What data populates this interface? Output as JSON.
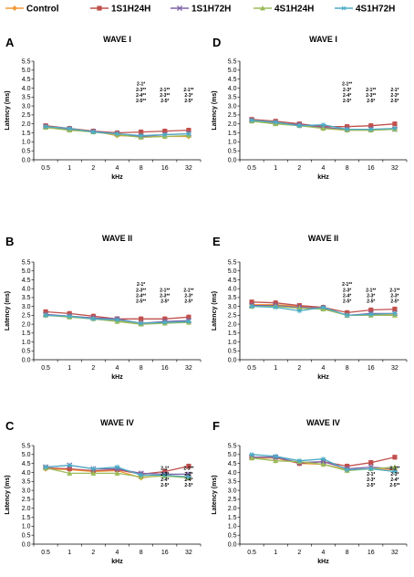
{
  "legend": [
    {
      "name": "Control",
      "color": "#f29b38",
      "marker": "diamond"
    },
    {
      "name": "1S1H24H",
      "color": "#c0504d",
      "marker": "square"
    },
    {
      "name": "1S1H72H",
      "color": "#7f63a8",
      "marker": "x"
    },
    {
      "name": "4S1H24H",
      "color": "#9bbb59",
      "marker": "triangle"
    },
    {
      "name": "4S1H72H",
      "color": "#4bacc6",
      "marker": "star"
    }
  ],
  "chart_data": [
    {
      "type": "line",
      "panel": "A",
      "title": "WAVE I",
      "xlabel": "kHz",
      "ylabel": "Latency (ms)",
      "categories": [
        "0.5",
        "1",
        "2",
        "4",
        "8",
        "16",
        "32"
      ],
      "ylim": [
        0,
        5.5
      ],
      "yticks": [
        "0.0",
        "0.5",
        "1.0",
        "1.5",
        "2.0",
        "2.5",
        "3.0",
        "3.5",
        "4.0",
        "4.5",
        "5.0",
        "5.5"
      ],
      "series": [
        {
          "name": "Control",
          "values": [
            1.85,
            1.75,
            1.6,
            1.35,
            1.3,
            1.3,
            1.3
          ]
        },
        {
          "name": "1S1H24H",
          "values": [
            1.9,
            1.75,
            1.6,
            1.5,
            1.55,
            1.6,
            1.65
          ]
        },
        {
          "name": "1S1H72H",
          "values": [
            1.85,
            1.7,
            1.58,
            1.45,
            1.3,
            1.4,
            1.45
          ]
        },
        {
          "name": "4S1H24H",
          "values": [
            1.8,
            1.65,
            1.55,
            1.4,
            1.25,
            1.3,
            1.35
          ]
        },
        {
          "name": "4S1H72H",
          "values": [
            1.85,
            1.75,
            1.55,
            1.45,
            1.35,
            1.4,
            1.45
          ]
        }
      ],
      "annotations": [
        {
          "category": "8",
          "lines": [
            "2-1*",
            "2-3**",
            "2-4**",
            "2-5**"
          ]
        },
        {
          "category": "16",
          "lines": [
            "2-1**",
            "2-3**",
            "2-5*"
          ]
        },
        {
          "category": "32",
          "lines": [
            "2-1**",
            "2-3*",
            "2-5*"
          ]
        }
      ]
    },
    {
      "type": "line",
      "panel": "D",
      "title": "WAVE I",
      "xlabel": "kHz",
      "ylabel": "Latency (ms)",
      "categories": [
        "0.5",
        "1",
        "2",
        "4",
        "8",
        "16",
        "32"
      ],
      "ylim": [
        0,
        5.5
      ],
      "yticks": [
        "0.0",
        "0.5",
        "1.0",
        "1.5",
        "2.0",
        "2.5",
        "3.0",
        "3.5",
        "4.0",
        "4.5",
        "5.0",
        "5.5"
      ],
      "series": [
        {
          "name": "Control",
          "values": [
            2.2,
            2.05,
            1.95,
            1.75,
            1.65,
            1.65,
            1.7
          ]
        },
        {
          "name": "1S1H24H",
          "values": [
            2.25,
            2.15,
            2.0,
            1.85,
            1.85,
            1.9,
            2.0
          ]
        },
        {
          "name": "1S1H72H",
          "values": [
            2.2,
            2.05,
            1.95,
            1.8,
            1.7,
            1.7,
            1.7
          ]
        },
        {
          "name": "4S1H24H",
          "values": [
            2.15,
            2.0,
            1.9,
            1.75,
            1.65,
            1.65,
            1.7
          ]
        },
        {
          "name": "4S1H72H",
          "values": [
            2.2,
            2.1,
            1.9,
            1.95,
            1.7,
            1.7,
            1.75
          ]
        }
      ],
      "annotations": [
        {
          "category": "8",
          "lines": [
            "2-1**",
            "2-3*",
            "2-4*",
            "2-5*"
          ]
        },
        {
          "category": "16",
          "lines": [
            "2-1**",
            "2-3**",
            "2-5*"
          ]
        },
        {
          "category": "32",
          "lines": [
            "2-1*",
            "2-3*",
            "2-5*"
          ]
        }
      ]
    },
    {
      "type": "line",
      "panel": "B",
      "title": "WAVE II",
      "xlabel": "kHz",
      "ylabel": "Latency (ms)",
      "categories": [
        "0.5",
        "1",
        "2",
        "4",
        "8",
        "16",
        "32"
      ],
      "ylim": [
        0,
        5.5
      ],
      "yticks": [
        "0.0",
        "0.5",
        "1.0",
        "1.5",
        "2.0",
        "2.5",
        "3.0",
        "3.5",
        "4.0",
        "4.5",
        "5.0",
        "5.5"
      ],
      "series": [
        {
          "name": "Control",
          "values": [
            2.5,
            2.45,
            2.35,
            2.2,
            2.05,
            2.1,
            2.1
          ]
        },
        {
          "name": "1S1H24H",
          "values": [
            2.7,
            2.6,
            2.45,
            2.3,
            2.3,
            2.3,
            2.4
          ]
        },
        {
          "name": "1S1H72H",
          "values": [
            2.55,
            2.45,
            2.35,
            2.3,
            2.05,
            2.15,
            2.2
          ]
        },
        {
          "name": "4S1H24H",
          "values": [
            2.5,
            2.4,
            2.3,
            2.15,
            2.0,
            2.05,
            2.1
          ]
        },
        {
          "name": "4S1H72H",
          "values": [
            2.5,
            2.45,
            2.3,
            2.25,
            2.05,
            2.1,
            2.15
          ]
        }
      ],
      "annotations": [
        {
          "category": "8",
          "lines": [
            "2-1*",
            "2-3**",
            "2-4**",
            "2-5**"
          ]
        },
        {
          "category": "16",
          "lines": [
            "2-1**",
            "2-3**",
            "2-5*"
          ]
        },
        {
          "category": "32",
          "lines": [
            "2-1**",
            "2-3*",
            "2-5*"
          ]
        }
      ]
    },
    {
      "type": "line",
      "panel": "E",
      "title": "WAVE II",
      "xlabel": "kHz",
      "ylabel": "Latency (ms)",
      "categories": [
        "0.5",
        "1",
        "2",
        "4",
        "8",
        "16",
        "32"
      ],
      "ylim": [
        0,
        5.5
      ],
      "yticks": [
        "0.0",
        "0.5",
        "1.0",
        "1.5",
        "2.0",
        "2.5",
        "3.0",
        "3.5",
        "4.0",
        "4.5",
        "5.0",
        "5.5"
      ],
      "series": [
        {
          "name": "Control",
          "values": [
            3.1,
            3.1,
            3.0,
            2.9,
            2.5,
            2.55,
            2.55
          ]
        },
        {
          "name": "1S1H24H",
          "values": [
            3.25,
            3.2,
            3.05,
            2.95,
            2.65,
            2.8,
            2.85
          ]
        },
        {
          "name": "1S1H72H",
          "values": [
            3.05,
            3.05,
            2.95,
            2.9,
            2.5,
            2.6,
            2.6
          ]
        },
        {
          "name": "4S1H24H",
          "values": [
            3.0,
            3.0,
            2.9,
            2.85,
            2.5,
            2.5,
            2.5
          ]
        },
        {
          "name": "4S1H72H",
          "values": [
            3.0,
            2.95,
            2.75,
            2.95,
            2.5,
            2.55,
            2.6
          ]
        }
      ],
      "annotations": [
        {
          "category": "8",
          "lines": [
            "2-1**",
            "2-3*",
            "2-4*",
            "2-5*"
          ]
        },
        {
          "category": "16",
          "lines": [
            "2-1**",
            "2-3*",
            "2-5*"
          ]
        },
        {
          "category": "32",
          "lines": [
            "2-1**",
            "2-3*",
            "2-5*"
          ]
        }
      ]
    },
    {
      "type": "line",
      "panel": "C",
      "title": "WAVE IV",
      "xlabel": "kHz",
      "ylabel": "Latency (ms)",
      "categories": [
        "0.5",
        "1",
        "2",
        "4",
        "8",
        "16",
        "32"
      ],
      "ylim": [
        0,
        5.5
      ],
      "yticks": [
        "0.0",
        "0.5",
        "1.0",
        "1.5",
        "2.0",
        "2.5",
        "3.0",
        "3.5",
        "4.0",
        "4.5",
        "5.0",
        "5.5"
      ],
      "series": [
        {
          "name": "Control",
          "values": [
            4.2,
            4.15,
            4.05,
            4.1,
            3.7,
            3.85,
            3.75
          ]
        },
        {
          "name": "1S1H24H",
          "values": [
            4.25,
            4.2,
            4.1,
            4.15,
            3.9,
            4.05,
            4.35
          ]
        },
        {
          "name": "1S1H72H",
          "values": [
            4.3,
            4.4,
            4.2,
            4.2,
            3.95,
            3.9,
            3.9
          ]
        },
        {
          "name": "4S1H24H",
          "values": [
            4.25,
            3.95,
            3.95,
            3.95,
            3.75,
            3.8,
            3.7
          ]
        },
        {
          "name": "4S1H72H",
          "values": [
            4.3,
            4.4,
            4.2,
            4.3,
            3.85,
            3.85,
            3.75
          ]
        }
      ],
      "annotations": [
        {
          "category": "16",
          "lines": [
            "2-1*",
            "2-3*",
            "2-4*",
            "2-5*"
          ]
        },
        {
          "category": "32",
          "lines": [
            "2-1**",
            "2-3*",
            "2-4*",
            "2-5*"
          ]
        }
      ]
    },
    {
      "type": "line",
      "panel": "F",
      "title": "WAVE IV",
      "xlabel": "kHz",
      "ylabel": "Latency (ms)",
      "categories": [
        "0.5",
        "1",
        "2",
        "4",
        "8",
        "16",
        "32"
      ],
      "ylim": [
        0,
        5.5
      ],
      "yticks": [
        "0.0",
        "0.5",
        "1.0",
        "1.5",
        "2.0",
        "2.5",
        "3.0",
        "3.5",
        "4.0",
        "4.5",
        "5.0",
        "5.5"
      ],
      "series": [
        {
          "name": "Control",
          "values": [
            4.8,
            4.8,
            4.5,
            4.45,
            4.15,
            4.2,
            4.15
          ]
        },
        {
          "name": "1S1H24H",
          "values": [
            4.85,
            4.85,
            4.5,
            4.6,
            4.35,
            4.55,
            4.85
          ]
        },
        {
          "name": "1S1H72H",
          "values": [
            4.85,
            4.85,
            4.55,
            4.6,
            4.2,
            4.3,
            4.2
          ]
        },
        {
          "name": "4S1H24H",
          "values": [
            4.8,
            4.65,
            4.6,
            4.45,
            4.1,
            4.2,
            4.3
          ]
        },
        {
          "name": "4S1H72H",
          "values": [
            5.0,
            4.9,
            4.65,
            4.75,
            4.15,
            4.2,
            4.05
          ]
        }
      ],
      "annotations": [
        {
          "category": "16",
          "lines": [
            "2-1*",
            "2-3*",
            "2-5*"
          ]
        },
        {
          "category": "32",
          "lines": [
            "2-1**",
            "2-3*",
            "2-4*",
            "2-5**"
          ]
        }
      ]
    }
  ]
}
